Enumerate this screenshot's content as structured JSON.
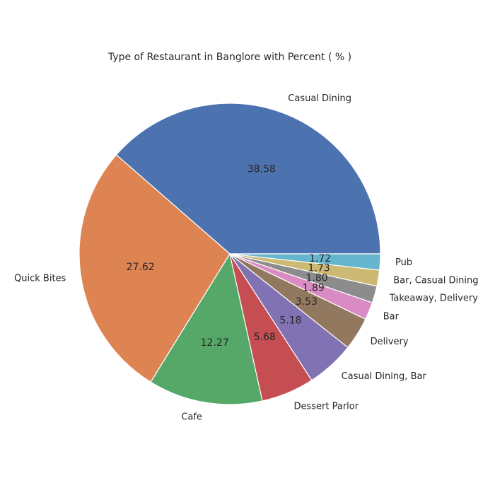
{
  "chart_data": {
    "type": "pie",
    "title": "Type of Restaurant in Banglore with Percent ( % )",
    "categories": [
      "Casual Dining",
      "Quick Bites",
      "Cafe",
      "Dessert Parlor",
      "Casual Dining, Bar",
      "Delivery",
      "Bar",
      "Takeaway, Delivery",
      "Bar, Casual Dining",
      "Pub"
    ],
    "values": [
      38.58,
      27.62,
      12.27,
      5.68,
      5.18,
      3.53,
      1.89,
      1.8,
      1.73,
      1.72
    ],
    "value_labels": [
      "38.58",
      "27.62",
      "12.27",
      "5.68",
      "5.18",
      "3.53",
      "1.89",
      "1.80",
      "1.73",
      "1.72"
    ],
    "colors": [
      "#4c72b0",
      "#dd8452",
      "#55a868",
      "#c44e52",
      "#8172b3",
      "#937860",
      "#da8bc3",
      "#8c8c8c",
      "#ccb974",
      "#64b5cd"
    ],
    "start_angle_deg": 0,
    "direction": "counterclockwise",
    "wedge_edge_color": "#ffffff"
  }
}
